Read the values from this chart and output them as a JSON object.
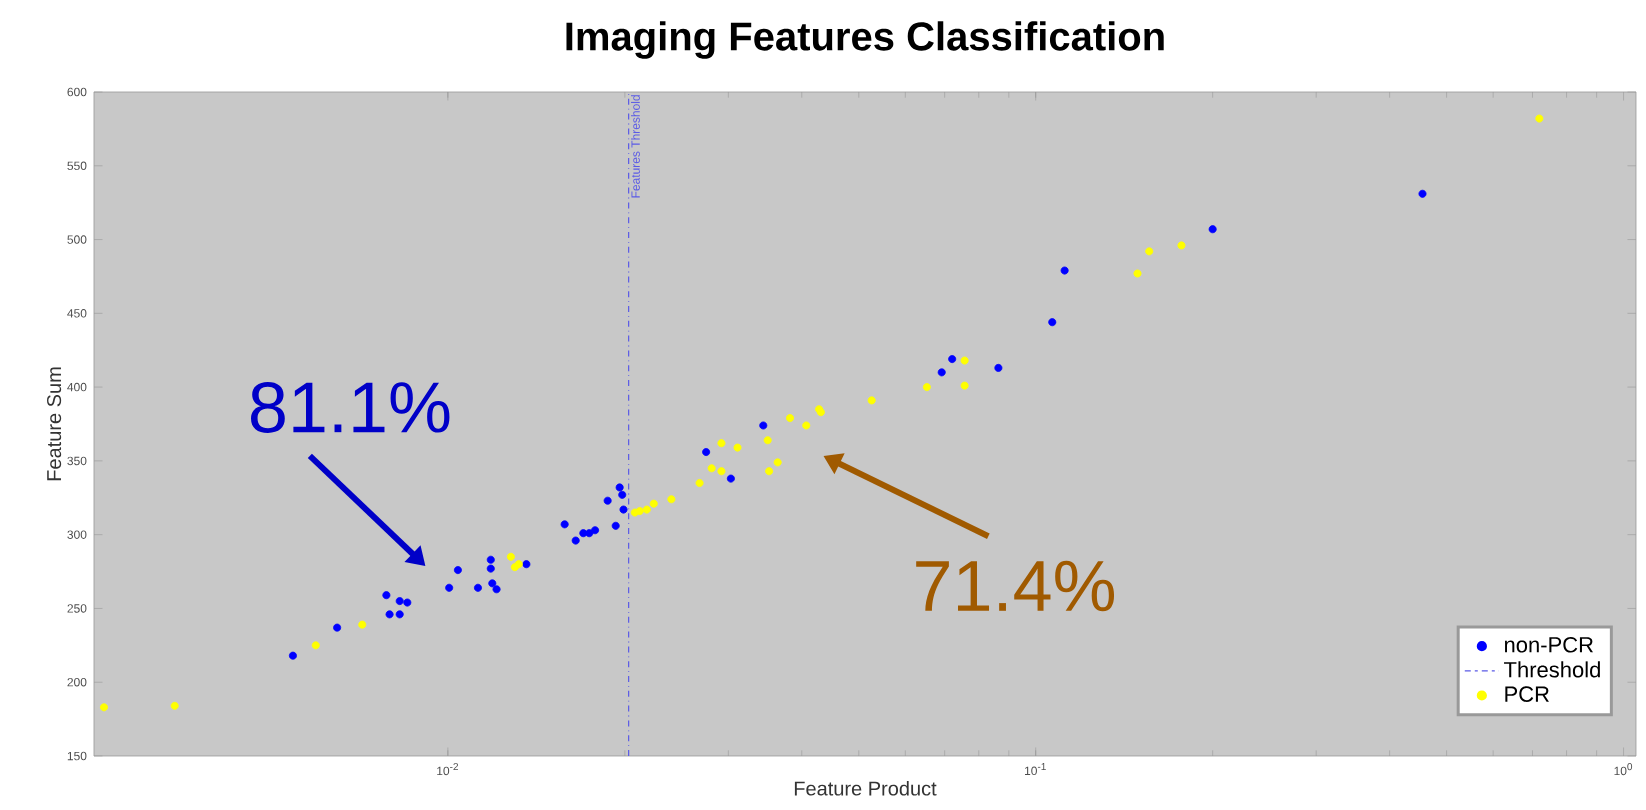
{
  "chart_data": {
    "type": "scatter",
    "title": "Imaging Features  Classification",
    "xlabel": "Feature Product",
    "ylabel": "Feature Sum",
    "log": "x",
    "marker": "circle",
    "legend": "bottom right",
    "grid": false,
    "xlim": [
      0.0025,
      1.05
    ],
    "ylim": [
      150,
      600
    ],
    "xticks": [
      {
        "value": 0.01,
        "label": "10$^{-2}$"
      },
      {
        "value": 0.1,
        "label": "10$^{-1}$"
      },
      {
        "value": 1,
        "label": "10$^{0}$"
      }
    ],
    "yticks": [
      150,
      200,
      250,
      300,
      350,
      400,
      450,
      500,
      550,
      600
    ],
    "series": [
      {
        "name": "non-PCR",
        "color": "#0000ff",
        "x": [
          0.00545,
          0.00648,
          0.00786,
          0.00796,
          0.00828,
          0.00828,
          0.00853,
          0.01005,
          0.0104,
          0.01125,
          0.01183,
          0.01183,
          0.0119,
          0.0121,
          0.0136,
          0.0158,
          0.0165,
          0.017,
          0.0174,
          0.0178,
          0.0187,
          0.0193,
          0.0196,
          0.0198,
          0.0199,
          0.0275,
          0.0303,
          0.0344,
          0.0692,
          0.0721,
          0.0864,
          0.1067,
          0.112,
          0.2,
          0.455
        ],
        "values": [
          218,
          237,
          259,
          246,
          246,
          255,
          254,
          264,
          276,
          264,
          283,
          277,
          267,
          263,
          280,
          307,
          296,
          301,
          301,
          303,
          323,
          306,
          332,
          327,
          317,
          356,
          338,
          374,
          410,
          419,
          413,
          444,
          479,
          507,
          531
        ]
      },
      {
        "name": "Threshold",
        "type": "line",
        "color": "#5a5ae6",
        "line_style": "dashdot",
        "marker": "none",
        "x": [
          0.0203,
          0.0203
        ],
        "values": [
          150,
          600
        ]
      },
      {
        "name": "PCR",
        "color": "#ffff00",
        "x": [
          0.0026,
          0.00343,
          0.00596,
          0.00715,
          0.0128,
          0.013,
          0.0132,
          0.0208,
          0.0212,
          0.0218,
          0.0224,
          0.024,
          0.0268,
          0.0281,
          0.0292,
          0.0292,
          0.0311,
          0.035,
          0.0352,
          0.0364,
          0.0382,
          0.0407,
          0.0428,
          0.0431,
          0.0526,
          0.0653,
          0.0757,
          0.0757,
          0.149,
          0.156,
          0.177,
          0.719
        ],
        "values": [
          183,
          184,
          225,
          239,
          285,
          278,
          280,
          315,
          316,
          317,
          321,
          324,
          335,
          345,
          362,
          343,
          359,
          364,
          343,
          349,
          379,
          374,
          385,
          383,
          391,
          400,
          418,
          401,
          477,
          492,
          496,
          582
        ]
      }
    ],
    "annotations": [
      {
        "text": "Features Threshold",
        "x": 0.0203,
        "y": 600
      },
      "81.1%",
      "71.4%"
    ]
  }
}
